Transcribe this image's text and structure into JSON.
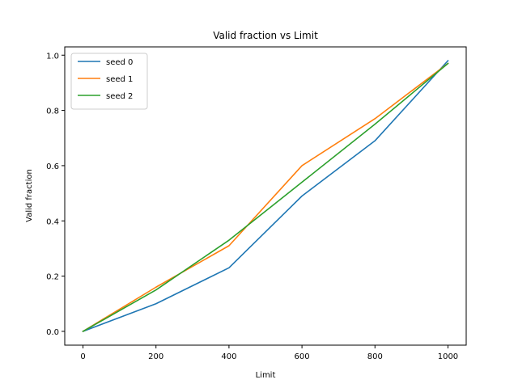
{
  "chart_data": {
    "type": "line",
    "title": "Valid fraction vs Limit",
    "xlabel": "Limit",
    "ylabel": "Valid fraction",
    "x": [
      0,
      200,
      400,
      600,
      800,
      1000
    ],
    "xlim": [
      -50,
      1050
    ],
    "ylim": [
      -0.05,
      1.03
    ],
    "xticks": [
      0,
      200,
      400,
      600,
      800,
      1000
    ],
    "yticks": [
      0.0,
      0.2,
      0.4,
      0.6,
      0.8,
      1.0
    ],
    "xtick_labels": [
      "0",
      "200",
      "400",
      "600",
      "800",
      "1000"
    ],
    "ytick_labels": [
      "0.0",
      "0.2",
      "0.4",
      "0.6",
      "0.8",
      "1.0"
    ],
    "grid": false,
    "legend_position": "top-left",
    "series": [
      {
        "name": "seed 0",
        "color": "#1f77b4",
        "values": [
          0.0,
          0.1,
          0.23,
          0.49,
          0.69,
          0.98
        ]
      },
      {
        "name": "seed 1",
        "color": "#ff7f0e",
        "values": [
          0.0,
          0.16,
          0.31,
          0.6,
          0.77,
          0.97
        ]
      },
      {
        "name": "seed 2",
        "color": "#2ca02c",
        "values": [
          0.0,
          0.15,
          0.33,
          0.54,
          0.75,
          0.97
        ]
      }
    ]
  }
}
